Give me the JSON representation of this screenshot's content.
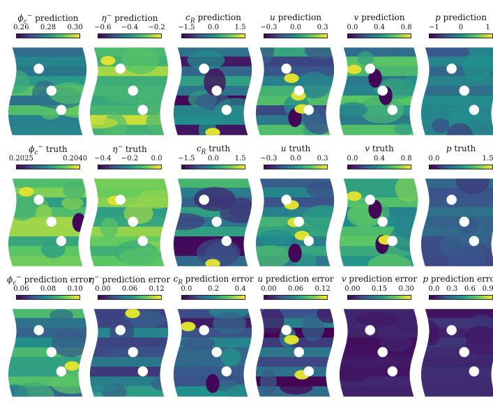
{
  "colormap": [
    "#440154",
    "#3b528b",
    "#21918c",
    "#5ec962",
    "#fde725"
  ],
  "rows": [
    {
      "panels": [
        {
          "var": "ϕ",
          "sup": "−",
          "sub": "c",
          "suffix": " prediction",
          "ticks": [
            "0.26",
            "0.28",
            "0.30"
          ],
          "level": 0.55,
          "variation": 0.45,
          "hot": [],
          "dark": []
        },
        {
          "var": "η",
          "sup": "−",
          "sub": "",
          "suffix": " prediction",
          "ticks": [
            "−0.6",
            "−0.4",
            "−0.2"
          ],
          "level": 0.75,
          "variation": 0.35,
          "hot": [
            [
              0.2,
              0.15
            ]
          ],
          "dark": []
        },
        {
          "var": "c",
          "sup": "",
          "sub": "R",
          "suffix": " prediction",
          "ticks": [
            "−1.5",
            "0.0",
            "1.5"
          ],
          "level": 0.35,
          "variation": 0.7,
          "hot": [
            [
              0.5,
              0.97
            ]
          ],
          "dark": []
        },
        {
          "var": "u",
          "sup": "",
          "sub": "",
          "suffix": " prediction",
          "ticks": [
            "−0.3",
            "0.0",
            "0.3"
          ],
          "level": 0.45,
          "variation": 0.5,
          "hot": [
            [
              0.45,
              0.35
            ],
            [
              0.55,
              0.55
            ],
            [
              0.6,
              0.7
            ]
          ],
          "dark": [
            [
              0.5,
              0.8
            ]
          ]
        },
        {
          "var": "v",
          "sup": "",
          "sub": "",
          "suffix": " prediction",
          "ticks": [
            "0.0",
            "0.4",
            "0.8"
          ],
          "level": 0.55,
          "variation": 0.4,
          "hot": [
            [
              0.15,
              0.25
            ]
          ],
          "dark": [
            [
              0.45,
              0.35
            ],
            [
              0.6,
              0.55
            ]
          ]
        },
        {
          "var": "p",
          "sup": "",
          "sub": "",
          "suffix": " prediction",
          "ticks": [
            "−1",
            "0",
            "1"
          ],
          "level": 0.35,
          "variation": 0.3,
          "hot": [],
          "dark": []
        }
      ]
    },
    {
      "panels": [
        {
          "var": "ϕ",
          "sup": "−",
          "sub": "c",
          "suffix": " truth",
          "ticks": [
            "0.2025",
            "0.2040"
          ],
          "level": 0.7,
          "variation": 0.4,
          "hot": [
            [
              0.2,
              0.15
            ]
          ],
          "dark": [
            [
              0.95,
              0.5
            ]
          ]
        },
        {
          "var": "η",
          "sup": "−",
          "sub": "",
          "suffix": " truth",
          "ticks": [
            "−0.4",
            "−0.2",
            "0.0"
          ],
          "level": 0.7,
          "variation": 0.4,
          "hot": [
            [
              0.3,
              0.25
            ]
          ],
          "dark": []
        },
        {
          "var": "c",
          "sup": "",
          "sub": "R",
          "suffix": " truth",
          "ticks": [
            "−1.5",
            "0.0",
            "1.5"
          ],
          "level": 0.35,
          "variation": 0.7,
          "hot": [
            [
              0.5,
              0.97
            ]
          ],
          "dark": []
        },
        {
          "var": "u",
          "sup": "",
          "sub": "",
          "suffix": " truth",
          "ticks": [
            "−0.3",
            "0.0",
            "0.3"
          ],
          "level": 0.45,
          "variation": 0.5,
          "hot": [
            [
              0.45,
              0.3
            ],
            [
              0.5,
              0.5
            ],
            [
              0.6,
              0.65
            ]
          ],
          "dark": [
            [
              0.5,
              0.85
            ]
          ]
        },
        {
          "var": "v",
          "sup": "",
          "sub": "",
          "suffix": " truth",
          "ticks": [
            "0.0",
            "0.4",
            "0.8"
          ],
          "level": 0.6,
          "variation": 0.4,
          "hot": [
            [
              0.15,
              0.2
            ],
            [
              0.6,
              0.7
            ]
          ],
          "dark": [
            [
              0.45,
              0.35
            ],
            [
              0.55,
              0.75
            ]
          ]
        },
        {
          "var": "p",
          "sup": "",
          "sub": "",
          "suffix": " truth",
          "ticks": [
            "0.0",
            "1.5"
          ],
          "level": 0.3,
          "variation": 0.25,
          "hot": [],
          "dark": []
        }
      ]
    },
    {
      "panels": [
        {
          "var": "ϕ",
          "sup": "−",
          "sub": "c",
          "suffix": " prediction error",
          "ticks": [
            "0.06",
            "0.08",
            "0.10"
          ],
          "level": 0.5,
          "variation": 0.45,
          "hot": [
            [
              0.85,
              0.65
            ]
          ],
          "dark": []
        },
        {
          "var": "η",
          "sup": "−",
          "sub": "",
          "suffix": " prediction error",
          "ticks": [
            "0.00",
            "0.06",
            "0.12"
          ],
          "level": 0.35,
          "variation": 0.4,
          "hot": [
            [
              0.55,
              0.05
            ]
          ],
          "dark": []
        },
        {
          "var": "c",
          "sup": "",
          "sub": "R",
          "suffix": " prediction error",
          "ticks": [
            "0.0",
            "0.2",
            "0.4"
          ],
          "level": 0.3,
          "variation": 0.5,
          "hot": [
            [
              0.15,
              0.2
            ]
          ],
          "dark": [
            [
              0.5,
              0.85
            ]
          ]
        },
        {
          "var": "u",
          "sup": "",
          "sub": "",
          "suffix": " prediction error",
          "ticks": [
            "0.00",
            "0.06",
            "0.12"
          ],
          "level": 0.2,
          "variation": 0.5,
          "hot": [
            [
              0.45,
              0.35
            ],
            [
              0.6,
              0.75
            ]
          ],
          "dark": []
        },
        {
          "var": "v",
          "sup": "",
          "sub": "",
          "suffix": " prediction error",
          "ticks": [
            "0.00",
            "0.15",
            "0.30"
          ],
          "level": 0.08,
          "variation": 0.1,
          "hot": [],
          "dark": []
        },
        {
          "var": "p",
          "sup": "",
          "sub": "",
          "suffix": " prediction error",
          "ticks": [
            "0.0",
            "0.3",
            "0.6",
            "0.9"
          ],
          "level": 0.12,
          "variation": 0.15,
          "hot": [],
          "dark": []
        }
      ]
    }
  ]
}
